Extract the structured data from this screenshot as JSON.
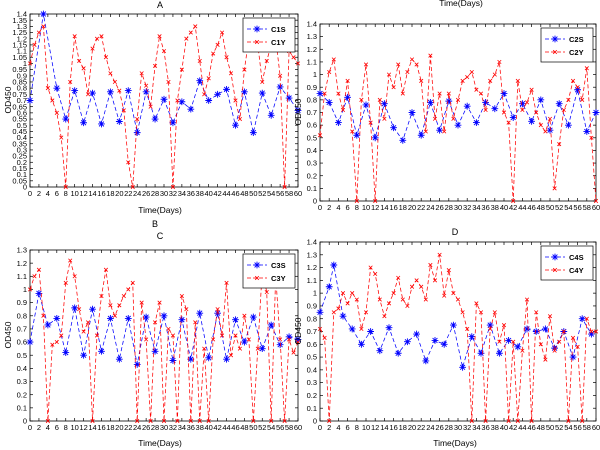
{
  "figure": {
    "stray_text_top": "Time(Days)",
    "stray_text_mid": "B"
  },
  "chart_data": [
    {
      "type": "line",
      "title": "A",
      "xlabel": "Time(Days)",
      "ylabel": "OD450",
      "xlim": [
        0,
        60
      ],
      "ylim": [
        0,
        1.4
      ],
      "yticks": [
        "0",
        "0.05",
        "0.1",
        "0.15",
        "0.2",
        "0.25",
        "0.3",
        "0.35",
        "0.4",
        "0.45",
        "0.5",
        "0.55",
        "0.6",
        "0.65",
        "0.7",
        "0.75",
        "0.8",
        "0.85",
        "0.9",
        "0.95",
        "1",
        "1.05",
        "1.1",
        "1.15",
        "1.2",
        "1.25",
        "1.3",
        "1.35",
        "1.4"
      ],
      "xticks": [
        "0",
        "2",
        "4",
        "6",
        "8",
        "10",
        "12",
        "14",
        "16",
        "18",
        "20",
        "22",
        "24",
        "26",
        "28",
        "30",
        "32",
        "34",
        "36",
        "38",
        "40",
        "42",
        "44",
        "46",
        "48",
        "50",
        "52",
        "54",
        "56",
        "58",
        "60"
      ],
      "legend_position": "top-right",
      "series": [
        {
          "name": "C1S",
          "color": "#0000ff",
          "marker": "star",
          "x": [
            0,
            3,
            6,
            8,
            10,
            12,
            14,
            16,
            18,
            20,
            22,
            24,
            26,
            28,
            30,
            32,
            34,
            36,
            38,
            40,
            42,
            44,
            46,
            48,
            50,
            52,
            54,
            56,
            58,
            60
          ],
          "y": [
            0.7,
            1.4,
            0.8,
            0.55,
            0.78,
            0.52,
            0.76,
            0.51,
            0.77,
            0.53,
            0.78,
            0.44,
            0.77,
            0.55,
            0.71,
            0.52,
            0.69,
            0.63,
            0.86,
            0.7,
            0.75,
            0.79,
            0.5,
            0.77,
            0.44,
            0.76,
            0.58,
            0.81,
            0.72,
            0.62
          ]
        },
        {
          "name": "C1Y",
          "color": "#ff0000",
          "marker": "x",
          "x": [
            0,
            1,
            2,
            3,
            4,
            5,
            6,
            7,
            8,
            9,
            10,
            11,
            12,
            13,
            14,
            15,
            16,
            17,
            18,
            19,
            20,
            21,
            22,
            23,
            24,
            25,
            26,
            27,
            28,
            29,
            30,
            31,
            32,
            33,
            34,
            35,
            36,
            37,
            38,
            39,
            40,
            41,
            42,
            43,
            44,
            45,
            46,
            47,
            48,
            49,
            50,
            51,
            52,
            53,
            54,
            55,
            56,
            57,
            58,
            59,
            60
          ],
          "y": [
            1.0,
            1.15,
            1.25,
            1.3,
            0.8,
            0.7,
            0.6,
            0.4,
            0.0,
            0.85,
            1.22,
            1.02,
            0.96,
            0.75,
            1.12,
            1.2,
            1.22,
            1.05,
            0.92,
            0.85,
            0.78,
            0.62,
            0.2,
            0.0,
            0.55,
            0.92,
            0.82,
            0.65,
            0.98,
            1.22,
            1.1,
            0.85,
            0.0,
            0.7,
            0.95,
            1.2,
            1.25,
            1.3,
            1.02,
            0.75,
            0.88,
            1.08,
            1.15,
            1.25,
            1.05,
            0.92,
            0.7,
            0.55,
            0.95,
            1.2,
            1.22,
            1.15,
            0.85,
            1.02,
            1.15,
            1.2,
            0.9,
            0.0,
            1.1,
            1.05,
            1.0
          ]
        }
      ]
    },
    {
      "type": "line",
      "title": "",
      "xlabel": "",
      "ylabel": "OD450",
      "xlim": [
        0,
        60
      ],
      "ylim": [
        0,
        1.4
      ],
      "yticks": [
        "0",
        "0.1",
        "0.2",
        "0.3",
        "0.4",
        "0.5",
        "0.6",
        "0.7",
        "0.8",
        "0.9",
        "1",
        "1.1",
        "1.2",
        "1.3",
        "1.4"
      ],
      "xticks": [
        "0",
        "2",
        "4",
        "6",
        "8",
        "10",
        "12",
        "14",
        "16",
        "18",
        "20",
        "22",
        "24",
        "26",
        "28",
        "30",
        "32",
        "34",
        "36",
        "38",
        "40",
        "42",
        "44",
        "46",
        "48",
        "50",
        "52",
        "54",
        "56",
        "58",
        "60"
      ],
      "legend_position": "top-right",
      "series": [
        {
          "name": "C2S",
          "color": "#0000ff",
          "marker": "star",
          "x": [
            0,
            2,
            4,
            6,
            8,
            10,
            12,
            14,
            16,
            18,
            20,
            22,
            24,
            26,
            28,
            30,
            32,
            34,
            36,
            38,
            40,
            42,
            44,
            46,
            48,
            50,
            52,
            54,
            56,
            58,
            60
          ],
          "y": [
            0.85,
            0.78,
            0.62,
            0.82,
            0.52,
            0.76,
            0.5,
            0.77,
            0.58,
            0.48,
            0.7,
            0.52,
            0.78,
            0.56,
            0.79,
            0.6,
            0.75,
            0.62,
            0.78,
            0.73,
            0.85,
            0.66,
            0.77,
            0.63,
            0.8,
            0.56,
            0.77,
            0.6,
            0.88,
            0.55,
            0.7
          ]
        },
        {
          "name": "C2Y",
          "color": "#ff0000",
          "marker": "x",
          "x": [
            0,
            1,
            2,
            3,
            4,
            5,
            6,
            7,
            8,
            9,
            10,
            11,
            12,
            13,
            14,
            15,
            16,
            17,
            18,
            19,
            20,
            21,
            22,
            23,
            24,
            25,
            26,
            27,
            28,
            29,
            30,
            31,
            32,
            33,
            34,
            35,
            36,
            37,
            38,
            39,
            40,
            41,
            42,
            43,
            44,
            45,
            46,
            47,
            48,
            49,
            50,
            51,
            52,
            53,
            54,
            55,
            56,
            57,
            58,
            59,
            60
          ],
          "y": [
            0.52,
            0.85,
            1.02,
            1.12,
            0.85,
            0.72,
            0.95,
            0.55,
            0.0,
            0.8,
            1.08,
            0.62,
            0.0,
            0.8,
            0.65,
            1.0,
            0.9,
            1.08,
            0.85,
            1.02,
            1.12,
            1.08,
            0.95,
            0.55,
            1.15,
            0.65,
            0.85,
            0.55,
            0.85,
            0.65,
            0.8,
            0.95,
            0.98,
            1.02,
            0.88,
            0.85,
            0.72,
            0.95,
            1.0,
            1.1,
            0.7,
            0.62,
            0.0,
            0.95,
            0.72,
            0.78,
            0.88,
            0.7,
            0.6,
            0.55,
            0.65,
            0.1,
            0.45,
            0.72,
            0.8,
            0.95,
            0.9,
            0.8,
            1.05,
            0.5,
            0.0
          ]
        }
      ]
    },
    {
      "type": "line",
      "title": "C",
      "xlabel": "Time(Days)",
      "ylabel": "OD450",
      "xlim": [
        0,
        60
      ],
      "ylim": [
        0,
        1.3
      ],
      "yticks": [
        "0",
        "0.1",
        "0.2",
        "0.3",
        "0.4",
        "0.5",
        "0.6",
        "0.7",
        "0.8",
        "0.9",
        "1",
        "1.1",
        "1.2",
        "1.3"
      ],
      "xticks": [
        "0",
        "2",
        "4",
        "6",
        "8",
        "10",
        "12",
        "14",
        "16",
        "18",
        "20",
        "22",
        "24",
        "26",
        "28",
        "30",
        "32",
        "34",
        "36",
        "38",
        "40",
        "42",
        "44",
        "46",
        "48",
        "50",
        "52",
        "54",
        "56",
        "58",
        "60"
      ],
      "legend_position": "top-right",
      "series": [
        {
          "name": "C3S",
          "color": "#0000ff",
          "marker": "star",
          "x": [
            0,
            2,
            4,
            6,
            8,
            10,
            12,
            14,
            16,
            18,
            20,
            22,
            24,
            26,
            28,
            30,
            32,
            34,
            36,
            38,
            40,
            42,
            44,
            46,
            48,
            50,
            52,
            54,
            56,
            58,
            60
          ],
          "y": [
            0.6,
            0.97,
            0.73,
            0.78,
            0.52,
            0.86,
            0.5,
            0.85,
            0.53,
            0.78,
            0.47,
            0.78,
            0.43,
            0.79,
            0.53,
            0.8,
            0.46,
            0.77,
            0.47,
            0.82,
            0.48,
            0.82,
            0.47,
            0.77,
            0.6,
            0.79,
            0.55,
            0.73,
            0.58,
            0.64,
            0.62
          ]
        },
        {
          "name": "C3Y",
          "color": "#ff0000",
          "marker": "x",
          "x": [
            0,
            1,
            2,
            3,
            4,
            5,
            6,
            7,
            8,
            9,
            10,
            11,
            12,
            13,
            14,
            15,
            16,
            17,
            18,
            19,
            20,
            21,
            22,
            23,
            24,
            25,
            26,
            27,
            28,
            29,
            30,
            31,
            32,
            33,
            34,
            35,
            36,
            37,
            38,
            39,
            40,
            41,
            42,
            43,
            44,
            45,
            46,
            47,
            48,
            49,
            50,
            51,
            52,
            53,
            54,
            55,
            56,
            57,
            58,
            59,
            60
          ],
          "y": [
            1.0,
            1.1,
            1.15,
            0.8,
            0.0,
            0.58,
            0.6,
            0.65,
            1.05,
            1.22,
            1.1,
            0.85,
            0.68,
            0.75,
            0.0,
            0.65,
            0.95,
            1.15,
            0.88,
            0.8,
            0.88,
            0.95,
            1.0,
            1.05,
            0.0,
            0.9,
            0.62,
            0.0,
            0.75,
            0.9,
            0.0,
            0.7,
            0.65,
            0.0,
            0.95,
            0.85,
            0.0,
            0.75,
            0.0,
            0.55,
            0.0,
            0.62,
            0.85,
            0.65,
            1.05,
            0.5,
            0.65,
            0.55,
            0.8,
            0.62,
            0.0,
            0.55,
            1.15,
            0.98,
            0.0,
            1.1,
            0.62,
            0.0,
            0.62,
            0.52,
            0.6
          ]
        }
      ]
    },
    {
      "type": "line",
      "title": "D",
      "xlabel": "Time(Days)",
      "ylabel": "OD450",
      "xlim": [
        0,
        60
      ],
      "ylim": [
        0,
        1.4
      ],
      "yticks": [
        "0",
        "0.1",
        "0.2",
        "0.3",
        "0.4",
        "0.5",
        "0.6",
        "0.7",
        "0.8",
        "0.9",
        "1",
        "1.1",
        "1.2",
        "1.3",
        "1.4"
      ],
      "xticks": [
        "0",
        "2",
        "4",
        "6",
        "8",
        "10",
        "12",
        "14",
        "16",
        "18",
        "20",
        "22",
        "24",
        "26",
        "28",
        "30",
        "32",
        "34",
        "36",
        "38",
        "40",
        "42",
        "44",
        "46",
        "48",
        "50",
        "52",
        "54",
        "56",
        "58",
        "60"
      ],
      "legend_position": "top-right",
      "series": [
        {
          "name": "C4S",
          "color": "#0000ff",
          "marker": "star",
          "x": [
            0,
            2,
            3,
            5,
            7,
            9,
            11,
            13,
            15,
            17,
            19,
            21,
            23,
            25,
            27,
            29,
            31,
            33,
            35,
            37,
            39,
            41,
            43,
            45,
            47,
            49,
            51,
            53,
            55,
            57,
            59
          ],
          "y": [
            0.85,
            1.05,
            1.22,
            0.82,
            0.72,
            0.6,
            0.7,
            0.55,
            0.73,
            0.53,
            0.62,
            0.68,
            0.47,
            0.63,
            0.6,
            0.75,
            0.42,
            0.66,
            0.53,
            0.75,
            0.53,
            0.63,
            0.58,
            0.72,
            0.7,
            0.72,
            0.57,
            0.7,
            0.5,
            0.8,
            0.68
          ]
        },
        {
          "name": "C4Y",
          "color": "#ff0000",
          "marker": "x",
          "x": [
            0,
            1,
            2,
            3,
            4,
            5,
            6,
            7,
            8,
            9,
            10,
            11,
            12,
            13,
            14,
            15,
            16,
            17,
            18,
            19,
            20,
            21,
            22,
            23,
            24,
            25,
            26,
            27,
            28,
            29,
            30,
            31,
            32,
            33,
            34,
            35,
            36,
            37,
            38,
            39,
            40,
            41,
            42,
            43,
            44,
            45,
            46,
            47,
            48,
            49,
            50,
            51,
            52,
            53,
            54,
            55,
            56,
            57,
            58,
            59,
            60
          ],
          "y": [
            0.72,
            0.65,
            0.0,
            0.85,
            0.88,
            1.0,
            0.92,
            1.0,
            0.95,
            0.72,
            0.85,
            1.2,
            1.15,
            0.95,
            0.82,
            0.92,
            1.0,
            1.12,
            0.95,
            0.9,
            1.05,
            1.1,
            1.05,
            0.95,
            1.22,
            1.1,
            1.3,
            0.98,
            1.18,
            1.0,
            0.95,
            0.85,
            0.72,
            0.0,
            0.92,
            0.85,
            0.0,
            0.72,
            0.85,
            0.62,
            0.75,
            0.0,
            0.62,
            0.0,
            0.55,
            0.95,
            0.0,
            0.85,
            0.6,
            0.48,
            0.82,
            0.55,
            0.62,
            0.7,
            0.0,
            0.65,
            0.58,
            0.0,
            0.8,
            0.7,
            0.7
          ]
        }
      ]
    }
  ]
}
